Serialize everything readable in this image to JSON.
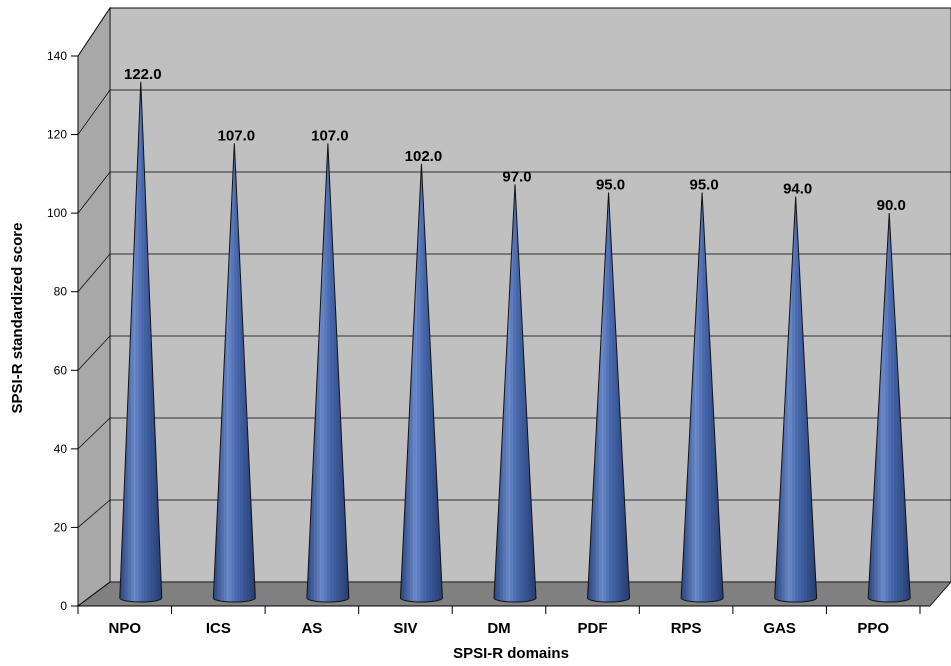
{
  "chart_data": {
    "type": "bar",
    "bar_shape": "cone",
    "categories": [
      "NPO",
      "ICS",
      "AS",
      "SIV",
      "DM",
      "PDF",
      "RPS",
      "GAS",
      "PPO"
    ],
    "values": [
      122.0,
      107.0,
      107.0,
      102.0,
      97.0,
      95.0,
      95.0,
      94.0,
      90.0
    ],
    "data_labels": [
      "122.0",
      "107.0",
      "107.0",
      "102.0",
      "97.0",
      "95.0",
      "95.0",
      "94.0",
      "90.0"
    ],
    "title": "",
    "xlabel": "SPSI-R domains",
    "ylabel": "SPSI-R standardized score",
    "ylim": [
      0,
      140
    ],
    "yticks": [
      0,
      20,
      40,
      60,
      80,
      100,
      120,
      140
    ],
    "grid": true,
    "legend": "none",
    "colors": {
      "bar": "#4a6bb0",
      "bar_light": "#8aa6da",
      "bar_dark": "#2a4580",
      "back_wall": "#c0c0c0",
      "side_wall": "#a8a8a8",
      "floor": "#808080",
      "grid": "#000000"
    }
  }
}
